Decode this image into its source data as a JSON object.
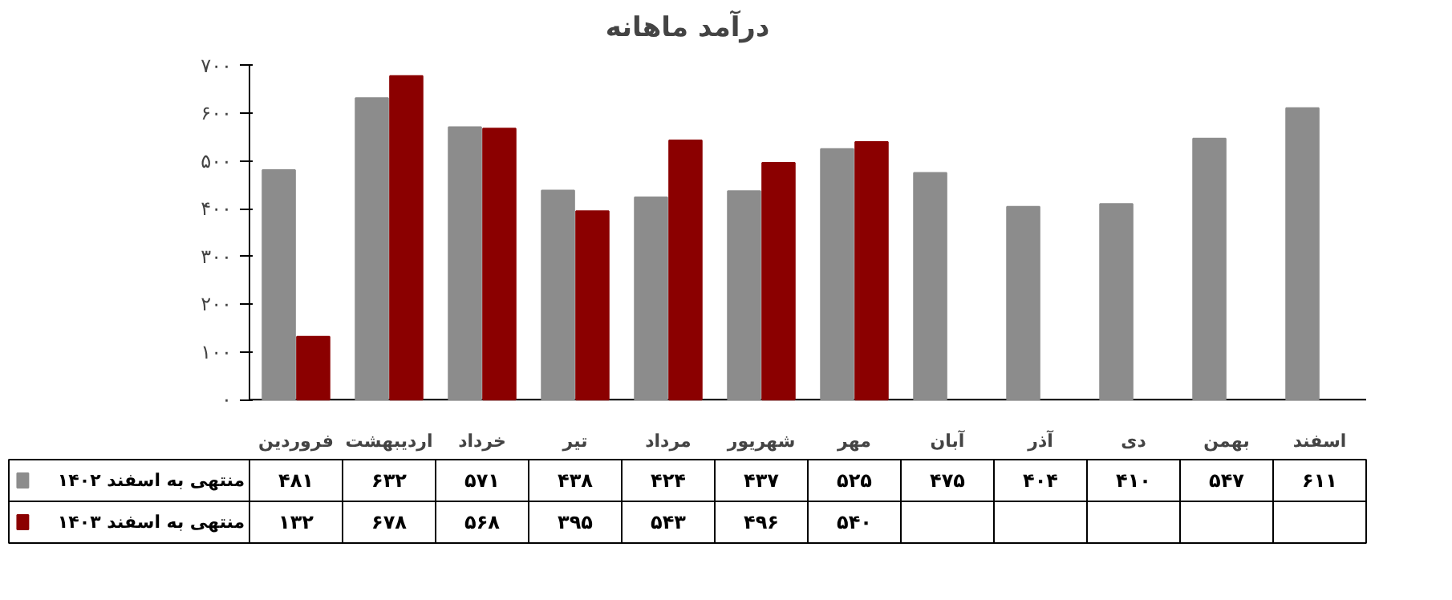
{
  "chart_data": {
    "type": "bar",
    "title": "درآمد ماهانه",
    "categories": [
      "فروردین",
      "اردیبهشت",
      "خرداد",
      "تیر",
      "مرداد",
      "شهریور",
      "مهر",
      "آبان",
      "آذر",
      "دی",
      "بهمن",
      "اسفند"
    ],
    "series": [
      {
        "name": "منتهی به اسفند ۱۴۰۲",
        "color": "#8c8c8c",
        "values": [
          481,
          632,
          571,
          438,
          424,
          437,
          525,
          475,
          404,
          410,
          547,
          611
        ],
        "value_labels": [
          "۴۸۱",
          "۶۳۲",
          "۵۷۱",
          "۴۳۸",
          "۴۲۴",
          "۴۳۷",
          "۵۲۵",
          "۴۷۵",
          "۴۰۴",
          "۴۱۰",
          "۵۴۷",
          "۶۱۱"
        ]
      },
      {
        "name": "منتهی به اسفند ۱۴۰۳",
        "color": "#8b0000",
        "values": [
          132,
          678,
          568,
          395,
          543,
          496,
          540,
          null,
          null,
          null,
          null,
          null
        ],
        "value_labels": [
          "۱۳۲",
          "۶۷۸",
          "۵۶۸",
          "۳۹۵",
          "۵۴۳",
          "۴۹۶",
          "۵۴۰",
          null,
          null,
          null,
          null,
          null
        ]
      }
    ],
    "ylim": [
      0,
      700
    ],
    "yticks": [
      {
        "value": 0,
        "label": "۰"
      },
      {
        "value": 100,
        "label": "۱۰۰"
      },
      {
        "value": 200,
        "label": "۲۰۰"
      },
      {
        "value": 300,
        "label": "۳۰۰"
      },
      {
        "value": 400,
        "label": "۴۰۰"
      },
      {
        "value": 500,
        "label": "۵۰۰"
      },
      {
        "value": 600,
        "label": "۶۰۰"
      },
      {
        "value": 700,
        "label": "۷۰۰"
      }
    ],
    "legend": "bottom left"
  }
}
